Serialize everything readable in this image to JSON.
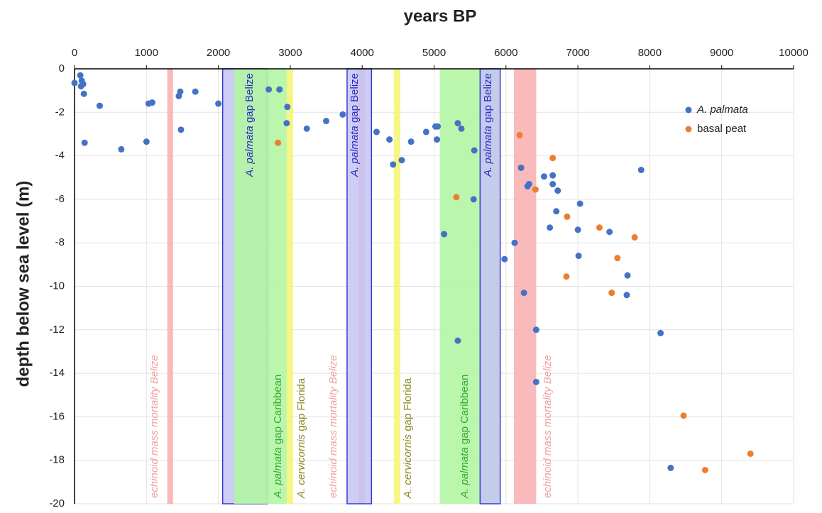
{
  "chart_data": {
    "type": "scatter",
    "title": "years BP",
    "y_label": "depth below sea level (m)",
    "xlim": [
      0,
      10000
    ],
    "xticks": [
      0,
      1000,
      2000,
      3000,
      4000,
      5000,
      6000,
      7000,
      8000,
      9000,
      10000
    ],
    "ylim": [
      -20,
      0
    ],
    "yticks": [
      0,
      -2,
      -4,
      -6,
      -8,
      -10,
      -12,
      -14,
      -16,
      -18,
      -20
    ],
    "grid": true,
    "legend": "upper right",
    "bands": [
      {
        "x": [
          1290,
          1370
        ],
        "color": "#f7b3b3",
        "text_color": "#f0a0a0",
        "label": [
          {
            "text": "echinoid mass mortality Belize",
            "italic": true
          }
        ]
      },
      {
        "x": [
          2060,
          2680
        ],
        "color": "#c4c4f4",
        "border": "#3a3ad0",
        "text_color": "#2a2ac0",
        "label": [
          {
            "text": "A. palmata",
            "italic": true
          },
          {
            "text": " gap Belize",
            "italic": false
          }
        ]
      },
      {
        "x": [
          2220,
          2960
        ],
        "color": "#b4f5a4",
        "text_color": "#33aa33",
        "label": [
          {
            "text": "A. palmata",
            "italic": true
          },
          {
            "text": " gap Caribbean",
            "italic": false
          }
        ]
      },
      {
        "x": [
          2950,
          3040
        ],
        "color": "#f5f57a",
        "text_color": "#8a8a20",
        "label": [
          {
            "text": "A. cervicornis",
            "italic": true
          },
          {
            "text": " gap Florida",
            "italic": false
          }
        ]
      },
      {
        "x": [
          3950,
          4040
        ],
        "color": "#f7b3b3",
        "text_color": "#f0a0a0",
        "label": [
          {
            "text": "echinoid mass mortality Belize",
            "italic": true
          }
        ]
      },
      {
        "x": [
          3790,
          4130
        ],
        "color": "#c4c4f4",
        "border": "#3a3ad0",
        "text_color": "#2a2ac0",
        "label": [
          {
            "text": "A. palmata",
            "italic": true
          },
          {
            "text": " gap Belize",
            "italic": false
          }
        ]
      },
      {
        "x": [
          4440,
          4530
        ],
        "color": "#f5f57a",
        "text_color": "#8a8a20",
        "label": [
          {
            "text": "A. cervicornis",
            "italic": true
          },
          {
            "text": " gap Florida",
            "italic": false
          }
        ]
      },
      {
        "x": [
          5080,
          5920
        ],
        "color": "#b4f5a4",
        "text_color": "#33aa33",
        "label": [
          {
            "text": "A. palmata",
            "italic": true
          },
          {
            "text": " gap Caribbean",
            "italic": false
          }
        ]
      },
      {
        "x": [
          5640,
          5920
        ],
        "color": "#c4c4f4",
        "border": "#3a3ad0",
        "text_color": "#2a2ac0",
        "label": [
          {
            "text": "A. palmata",
            "italic": true
          },
          {
            "text": " gap Belize",
            "italic": false
          }
        ]
      },
      {
        "x": [
          6110,
          6420
        ],
        "color": "#f7b3b3",
        "text_color": "#f0a0a0",
        "label": [
          {
            "text": "echinoid mass mortality Belize",
            "italic": true
          }
        ]
      }
    ],
    "series": [
      {
        "name": "A. palmata",
        "color": "#4472c4",
        "x": [
          0,
          80,
          100,
          120,
          90,
          130,
          140,
          350,
          650,
          1000,
          1030,
          1080,
          1450,
          1470,
          1480,
          1680,
          2000,
          2700,
          2850,
          2950,
          2960,
          3230,
          3500,
          3730,
          4200,
          4380,
          4430,
          4550,
          4680,
          4890,
          5020,
          5050,
          5040,
          5330,
          5380,
          5140,
          5330,
          5560,
          5550,
          5980,
          6120,
          6210,
          6250,
          6300,
          6320,
          6420,
          6420,
          6530,
          6650,
          6650,
          6700,
          6720,
          6610,
          7000,
          7010,
          7030,
          7440,
          7690,
          7680,
          7880,
          8150,
          8290
        ],
        "values": [
          -0.65,
          -0.3,
          -0.55,
          -0.7,
          -0.8,
          -1.15,
          -3.4,
          -1.7,
          -3.7,
          -3.35,
          -1.6,
          -1.55,
          -1.25,
          -1.05,
          -2.8,
          -1.05,
          -1.6,
          -0.95,
          -0.95,
          -2.5,
          -1.75,
          -2.75,
          -2.4,
          -2.1,
          -2.9,
          -3.25,
          -4.4,
          -4.2,
          -3.35,
          -2.9,
          -2.65,
          -2.65,
          -3.25,
          -2.5,
          -2.75,
          -7.6,
          -12.5,
          -3.75,
          -6,
          -8.75,
          -8,
          -4.55,
          -10.3,
          -5.4,
          -5.3,
          -12,
          -14.4,
          -4.95,
          -4.9,
          -5.3,
          -6.55,
          -5.6,
          -7.3,
          -7.4,
          -8.6,
          -6.2,
          -7.5,
          -9.5,
          -10.4,
          -4.65,
          -12.15,
          -18.35
        ]
      },
      {
        "name": "basal peat",
        "color": "#ed7d31",
        "x": [
          2830,
          5310,
          6190,
          6410,
          6650,
          6850,
          6840,
          7300,
          7470,
          7550,
          7790,
          8470,
          8770,
          9400
        ],
        "values": [
          -3.4,
          -5.9,
          -3.05,
          -5.55,
          -4.1,
          -6.8,
          -9.55,
          -7.3,
          -10.3,
          -8.7,
          -7.75,
          -15.95,
          -18.45,
          -17.7
        ]
      }
    ]
  }
}
